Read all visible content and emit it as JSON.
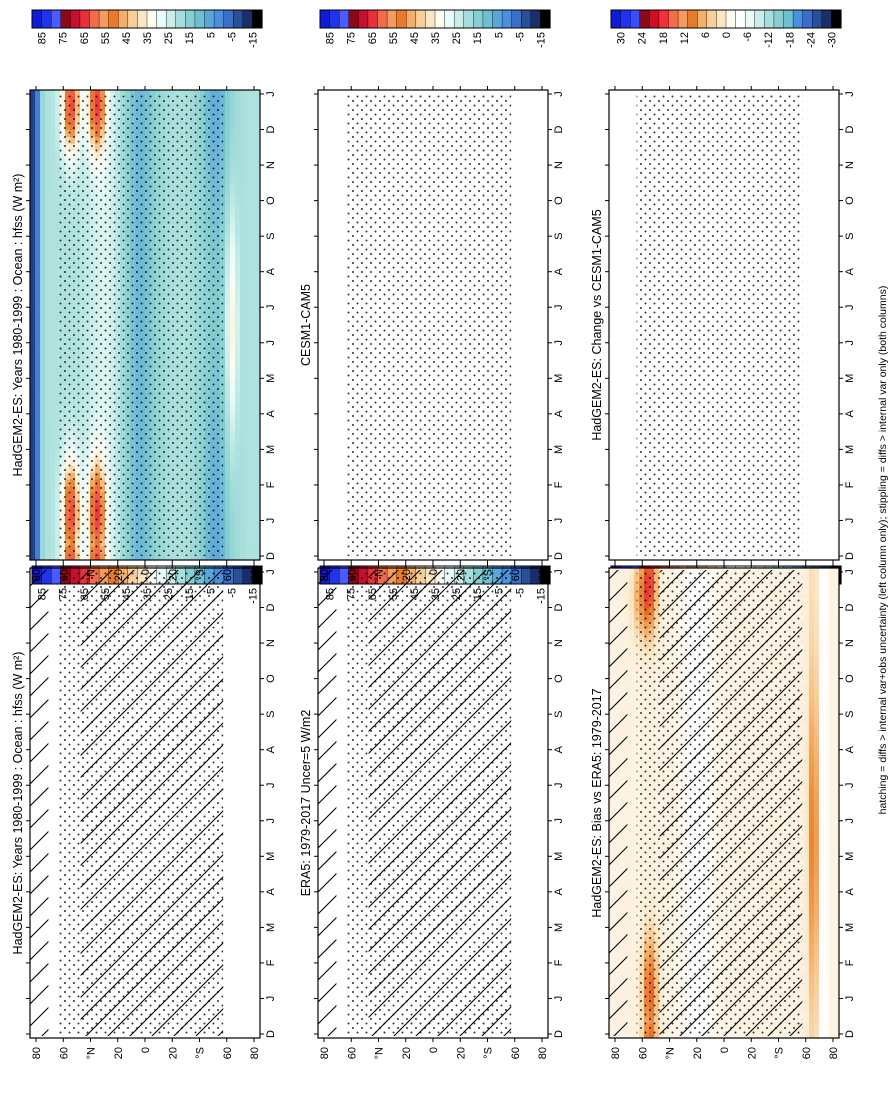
{
  "figure": {
    "footer_note": "hatching = diffs > internal var+obs uncertainty (left column only); stippling = diffs > internal var only (both columns)"
  },
  "chart_data": [
    {
      "type": "heatmap",
      "title": "HadGEM2-ES: Years 1980-1999 : Ocean : hfss (W m²)",
      "x_ticks": [
        "D",
        "J",
        "F",
        "M",
        "A",
        "M",
        "J",
        "J",
        "A",
        "S",
        "O",
        "N",
        "D",
        "J"
      ],
      "y_ticks": [
        "80",
        "60",
        "°N",
        "20",
        "0",
        "20",
        "°S",
        "60",
        "80"
      ],
      "colorbar_ticks": [
        "85",
        "75",
        "65",
        "55",
        "45",
        "35",
        "25",
        "15",
        "5",
        "-5",
        "-15"
      ],
      "overlay": "hatch+stipple",
      "palette": "clim",
      "extra": "ant"
    },
    {
      "type": "heatmap",
      "title": "HadGEM2-ES: Years 1980-1999 : Ocean : hfss (W m²)",
      "x_ticks": [
        "D",
        "J",
        "F",
        "M",
        "A",
        "M",
        "J",
        "J",
        "A",
        "S",
        "O",
        "N",
        "D",
        "J"
      ],
      "y_ticks": [
        "80",
        "60",
        "°N",
        "20",
        "0",
        "20",
        "°S",
        "60",
        "80"
      ],
      "colorbar_ticks": [
        "85",
        "75",
        "65",
        "55",
        "45",
        "35",
        "25",
        "15",
        "5",
        "-5",
        "-15"
      ],
      "overlay": "stipple",
      "palette": "clim",
      "extra": "ant"
    },
    {
      "type": "heatmap",
      "title": "ERA5: 1979-2017 Uncer=5 W/m2",
      "x_ticks": [
        "D",
        "J",
        "F",
        "M",
        "A",
        "M",
        "J",
        "J",
        "A",
        "S",
        "O",
        "N",
        "D",
        "J"
      ],
      "y_ticks": [
        "80",
        "60",
        "°N",
        "20",
        "0",
        "20",
        "°S",
        "60",
        "80"
      ],
      "colorbar_ticks": [
        "85",
        "75",
        "65",
        "55",
        "45",
        "35",
        "25",
        "15",
        "5",
        "-5",
        "-15"
      ],
      "overlay": "hatch+stipple",
      "palette": "clim",
      "extra": "none"
    },
    {
      "type": "heatmap",
      "title": "CESM1-CAM5",
      "x_ticks": [
        "D",
        "J",
        "F",
        "M",
        "A",
        "M",
        "J",
        "J",
        "A",
        "S",
        "O",
        "N",
        "D",
        "J"
      ],
      "y_ticks": [
        "80",
        "60",
        "°N",
        "20",
        "0",
        "20",
        "°S",
        "60",
        "80"
      ],
      "colorbar_ticks": [
        "85",
        "75",
        "65",
        "55",
        "45",
        "35",
        "25",
        "15",
        "5",
        "-5",
        "-15"
      ],
      "overlay": "stipple",
      "palette": "clim",
      "extra": "cesm"
    },
    {
      "type": "heatmap",
      "title": "HadGEM2-ES: Bias vs ERA5: 1979-2017",
      "x_ticks": [
        "D",
        "J",
        "F",
        "M",
        "A",
        "M",
        "J",
        "J",
        "A",
        "S",
        "O",
        "N",
        "D",
        "J"
      ],
      "y_ticks": [
        "80",
        "60",
        "°N",
        "20",
        "0",
        "20",
        "°S",
        "60",
        "80"
      ],
      "colorbar_ticks": [
        "30",
        "24",
        "18",
        "12",
        "6",
        "0",
        "-6",
        "-12",
        "-18",
        "-24",
        "-30"
      ],
      "overlay": "hatch+stipple",
      "palette": "bias",
      "extra": "bias"
    },
    {
      "type": "heatmap",
      "title": "HadGEM2-ES: Change vs CESM1-CAM5",
      "x_ticks": [
        "D",
        "J",
        "F",
        "M",
        "A",
        "M",
        "J",
        "J",
        "A",
        "S",
        "O",
        "N",
        "D",
        "J"
      ],
      "y_ticks": [
        "80",
        "60",
        "°N",
        "20",
        "0",
        "20",
        "°S",
        "60",
        "80"
      ],
      "colorbar_ticks": [
        "30",
        "24",
        "18",
        "12",
        "6",
        "0",
        "-6",
        "-12",
        "-18",
        "-24",
        "-30"
      ],
      "overlay": "stipple",
      "palette": "change",
      "extra": "change"
    }
  ],
  "colorbar_colors": {
    "clim": [
      "#0f1bd6",
      "#2233ee",
      "#4a5cff",
      "#8a0a1a",
      "#c8102e",
      "#e8303a",
      "#f26b4a",
      "#f59a5a",
      "#e97a2a",
      "#f4b06a",
      "#f8cf9a",
      "#fbe6c4",
      "#fffdf0",
      "#eafaf8",
      "#c9eeea",
      "#a6dedb",
      "#86cfd0",
      "#6cc0d2",
      "#5aa6dc",
      "#4a8fe0",
      "#3a6fc9",
      "#2a4f9a",
      "#1a2f6a",
      "#000000"
    ],
    "diff": [
      "#0f1bd6",
      "#2233ee",
      "#3a4cff",
      "#8a0a1a",
      "#d01020",
      "#f0303a",
      "#f26b4a",
      "#f59a5a",
      "#e97a2a",
      "#f4b06a",
      "#f8cf9a",
      "#fbe6c4",
      "#fffdf0",
      "#ffffff",
      "#eafaf8",
      "#c9eeea",
      "#a6dedb",
      "#86cfd0",
      "#6cc0d2",
      "#4a8fe0",
      "#3a6fc9",
      "#2a4f9a",
      "#1a2f6a",
      "#000000"
    ]
  }
}
